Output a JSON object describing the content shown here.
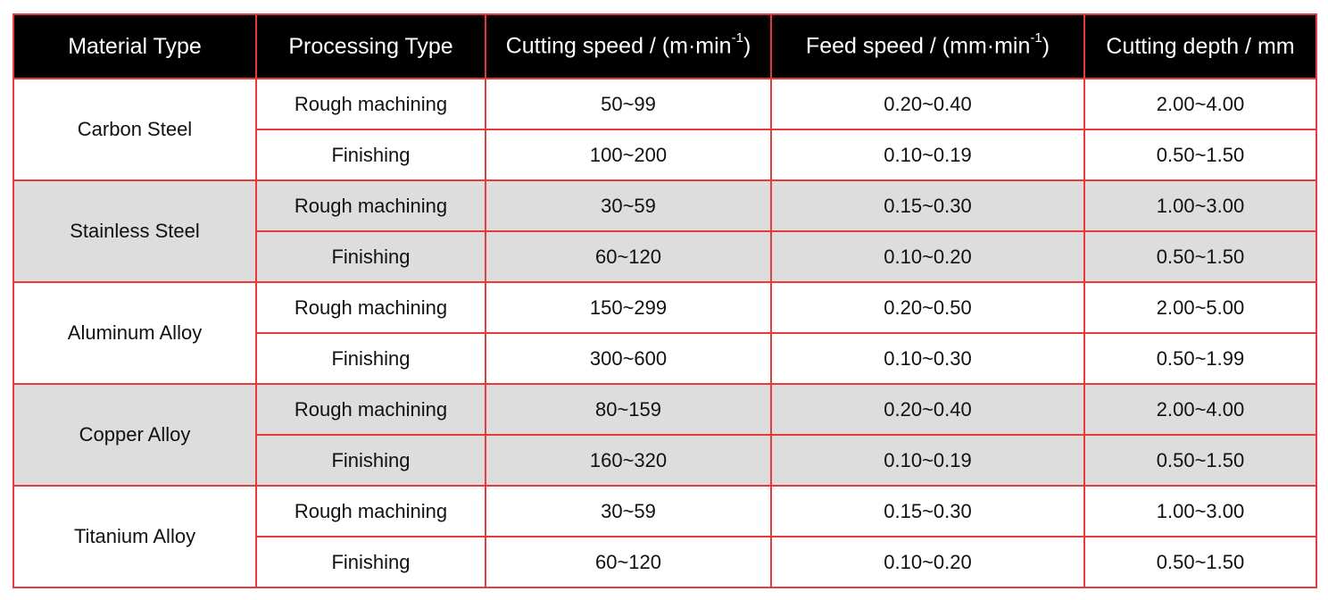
{
  "table": {
    "headers": [
      {
        "text": "Material Type"
      },
      {
        "text": "Processing Type"
      },
      {
        "text": "Cutting speed / (m·min",
        "sup": "-1",
        "tail": ")"
      },
      {
        "text": "Feed speed / (mm·min",
        "sup": "-1",
        "tail": ")"
      },
      {
        "text": "Cutting depth / mm"
      }
    ],
    "groups": [
      {
        "material": "Carbon Steel",
        "shaded": false,
        "rows": [
          {
            "process": "Rough machining",
            "cutting_speed": "50~99",
            "feed_speed": "0.20~0.40",
            "cutting_depth": "2.00~4.00"
          },
          {
            "process": "Finishing",
            "cutting_speed": "100~200",
            "feed_speed": "0.10~0.19",
            "cutting_depth": "0.50~1.50"
          }
        ]
      },
      {
        "material": "Stainless Steel",
        "shaded": true,
        "rows": [
          {
            "process": "Rough machining",
            "cutting_speed": "30~59",
            "feed_speed": "0.15~0.30",
            "cutting_depth": "1.00~3.00"
          },
          {
            "process": "Finishing",
            "cutting_speed": "60~120",
            "feed_speed": "0.10~0.20",
            "cutting_depth": "0.50~1.50"
          }
        ]
      },
      {
        "material": "Aluminum Alloy",
        "shaded": false,
        "rows": [
          {
            "process": "Rough machining",
            "cutting_speed": "150~299",
            "feed_speed": "0.20~0.50",
            "cutting_depth": "2.00~5.00"
          },
          {
            "process": "Finishing",
            "cutting_speed": "300~600",
            "feed_speed": "0.10~0.30",
            "cutting_depth": "0.50~1.99"
          }
        ]
      },
      {
        "material": "Copper Alloy",
        "shaded": true,
        "rows": [
          {
            "process": "Rough machining",
            "cutting_speed": "80~159",
            "feed_speed": "0.20~0.40",
            "cutting_depth": "2.00~4.00"
          },
          {
            "process": "Finishing",
            "cutting_speed": "160~320",
            "feed_speed": "0.10~0.19",
            "cutting_depth": "0.50~1.50"
          }
        ]
      },
      {
        "material": "Titanium Alloy",
        "shaded": false,
        "rows": [
          {
            "process": "Rough machining",
            "cutting_speed": "30~59",
            "feed_speed": "0.15~0.30",
            "cutting_depth": "1.00~3.00"
          },
          {
            "process": "Finishing",
            "cutting_speed": "60~120",
            "feed_speed": "0.10~0.20",
            "cutting_depth": "0.50~1.50"
          }
        ]
      }
    ]
  },
  "colors": {
    "header_bg": "#000000",
    "header_text": "#ffffff",
    "border": "#e8393c",
    "shaded_row": "#dddddd"
  }
}
